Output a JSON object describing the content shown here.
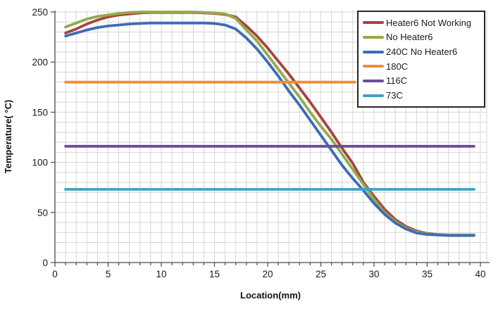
{
  "chart_data": {
    "type": "line",
    "title": "",
    "xlabel": "Location(mm)",
    "ylabel": "Temperature( °C)",
    "xlim": [
      0,
      40.6
    ],
    "ylim": [
      0,
      250
    ],
    "x_ticks": [
      0,
      5,
      10,
      15,
      20,
      25,
      30,
      35,
      40
    ],
    "x_minor_step": 1,
    "y_ticks": [
      0,
      50,
      100,
      150,
      200,
      250
    ],
    "y_minor_step": 10,
    "grid": "minor gridlines on, light gray",
    "legend_position": "top-right inside plot, white box with black border",
    "series": [
      {
        "name": "Heater6 Not Working",
        "color": "#a84440",
        "x": [
          1,
          2,
          3,
          4,
          5,
          6,
          7,
          8,
          9,
          10,
          11,
          12,
          13,
          14,
          15,
          16,
          17,
          18,
          19,
          20,
          21,
          22,
          23,
          24,
          25,
          26,
          27,
          28,
          29,
          30,
          31,
          32,
          33,
          34,
          35,
          36,
          37,
          38,
          39,
          39.4
        ],
        "y": [
          229,
          233,
          238,
          242,
          245,
          247,
          248,
          249,
          249.5,
          249.5,
          249.5,
          249.5,
          249.5,
          249,
          248.5,
          247.5,
          245,
          236,
          226,
          214,
          201,
          188,
          174,
          160,
          145,
          130,
          114,
          99,
          80,
          66,
          53,
          43,
          36,
          31.5,
          29,
          28,
          27.5,
          27.5,
          27.5,
          27.5
        ]
      },
      {
        "name": "No Heater6",
        "color": "#92ab4c",
        "x": [
          1,
          2,
          3,
          4,
          5,
          6,
          7,
          8,
          9,
          10,
          11,
          12,
          13,
          14,
          15,
          16,
          17,
          18,
          19,
          20,
          21,
          22,
          23,
          24,
          25,
          26,
          27,
          28,
          29,
          30,
          31,
          32,
          33,
          34,
          35,
          36,
          37,
          38,
          39,
          39.4
        ],
        "y": [
          235,
          239,
          243,
          245.5,
          247,
          248.5,
          249.5,
          250,
          250,
          250,
          250,
          250,
          250,
          249.5,
          249,
          248,
          243.5,
          232,
          221,
          207,
          193,
          179,
          165,
          150,
          136,
          123,
          108,
          93,
          78,
          63,
          50,
          41,
          34.5,
          30.5,
          28.5,
          28,
          27.5,
          27.5,
          27.5,
          27.5
        ]
      },
      {
        "name": "240C No Heater6",
        "color": "#3d6cb4",
        "x": [
          1,
          2,
          3,
          4,
          5,
          6,
          7,
          8,
          9,
          10,
          11,
          12,
          13,
          14,
          15,
          16,
          17,
          18,
          19,
          20,
          21,
          22,
          23,
          24,
          25,
          26,
          27,
          28,
          29,
          30,
          31,
          32,
          33,
          34,
          35,
          36,
          37,
          38,
          39,
          39.4
        ],
        "y": [
          226,
          229,
          232,
          234.5,
          236,
          237,
          238,
          238.5,
          239,
          239,
          239,
          239,
          239,
          239,
          238.5,
          237,
          233,
          224,
          213,
          200,
          186,
          171,
          157,
          142,
          127,
          112,
          97,
          84,
          72,
          59,
          48,
          39.5,
          33.5,
          29.5,
          28,
          27.5,
          27,
          27,
          27,
          27
        ]
      },
      {
        "name": "180C",
        "color": "#ef8d34",
        "x": [
          1,
          28.2
        ],
        "y": [
          180,
          180
        ]
      },
      {
        "name": "116C",
        "color": "#6b4d9b",
        "x": [
          1,
          39.4
        ],
        "y": [
          116,
          116
        ]
      },
      {
        "name": "73C",
        "color": "#3fa3c2",
        "x": [
          1,
          39.4
        ],
        "y": [
          73,
          73
        ]
      }
    ]
  },
  "colors": {
    "background": "#ffffff",
    "gridline": "#d5d5d5",
    "axis": "#4a4a4a",
    "text": "#1a1a1a",
    "legend_border": "#262626"
  }
}
